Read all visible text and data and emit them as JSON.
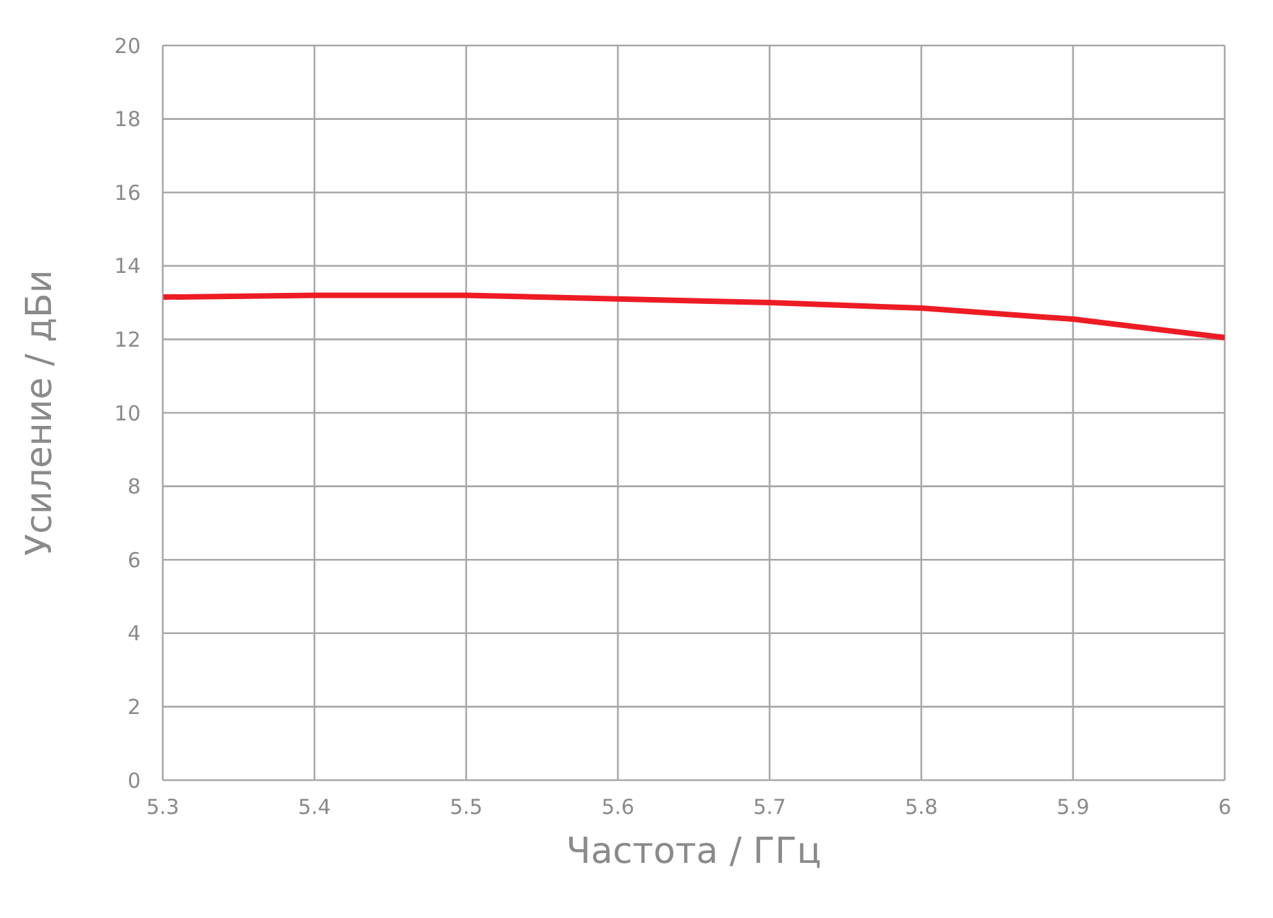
{
  "chart_data": {
    "type": "line",
    "xlabel": "Частота / ГГц",
    "ylabel": "Усиление / дБи",
    "x": [
      5.3,
      5.4,
      5.5,
      5.6,
      5.7,
      5.8,
      5.9,
      6
    ],
    "series": [
      {
        "color": "#ed1c24",
        "values": [
          13.15,
          13.2,
          13.2,
          13.1,
          13.0,
          12.85,
          12.55,
          12.05
        ]
      }
    ],
    "xlim": [
      5.3,
      6
    ],
    "xticks": [
      5.3,
      5.4,
      5.5,
      5.6,
      5.7,
      5.8,
      5.9,
      6
    ],
    "ylim": [
      0,
      20
    ],
    "yticks": [
      0,
      2,
      4,
      6,
      8,
      10,
      12,
      14,
      16,
      18,
      20
    ],
    "grid": true,
    "marker": "none",
    "line_style": "solid",
    "legend": false
  }
}
